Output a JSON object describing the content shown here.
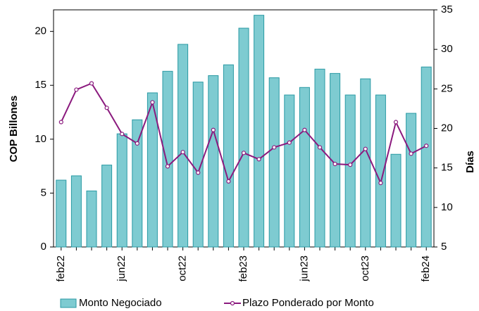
{
  "chart_data": {
    "type": "bar_line",
    "categories": [
      "feb22",
      null,
      null,
      null,
      "jun22",
      null,
      null,
      null,
      "oct22",
      null,
      null,
      null,
      "feb23",
      null,
      null,
      null,
      "jun23",
      null,
      null,
      null,
      "oct23",
      null,
      null,
      null,
      "feb24"
    ],
    "series": [
      {
        "name": "Monto Negociado",
        "type": "bar",
        "color": "#7ecbd1",
        "axis": "y",
        "values": [
          6.2,
          6.6,
          5.2,
          7.6,
          10.5,
          11.8,
          14.3,
          16.3,
          18.8,
          15.3,
          15.9,
          16.9,
          20.3,
          21.5,
          15.7,
          14.1,
          14.8,
          16.5,
          16.1,
          14.1,
          15.6,
          14.1,
          8.6,
          12.4,
          16.7
        ]
      },
      {
        "name": "Plazo Ponderado por Monto",
        "type": "line",
        "color": "#8b1a7e",
        "axis": "y2",
        "values": [
          20.8,
          24.9,
          25.7,
          22.6,
          19.3,
          18.1,
          23.3,
          15.2,
          17.0,
          14.4,
          19.8,
          13.3,
          16.9,
          16.1,
          17.6,
          18.2,
          19.8,
          17.6,
          15.5,
          15.4,
          17.4,
          13.1,
          20.8,
          16.8,
          17.8
        ]
      }
    ],
    "y_label": "COP Billones",
    "y2_label": "Días",
    "ylim": [
      0,
      22
    ],
    "yticks": [
      0,
      5,
      10,
      15,
      20
    ],
    "y2lim": [
      5,
      35
    ],
    "y2ticks": [
      5,
      10,
      15,
      20,
      25,
      30,
      35
    ],
    "legend": "bottom"
  }
}
